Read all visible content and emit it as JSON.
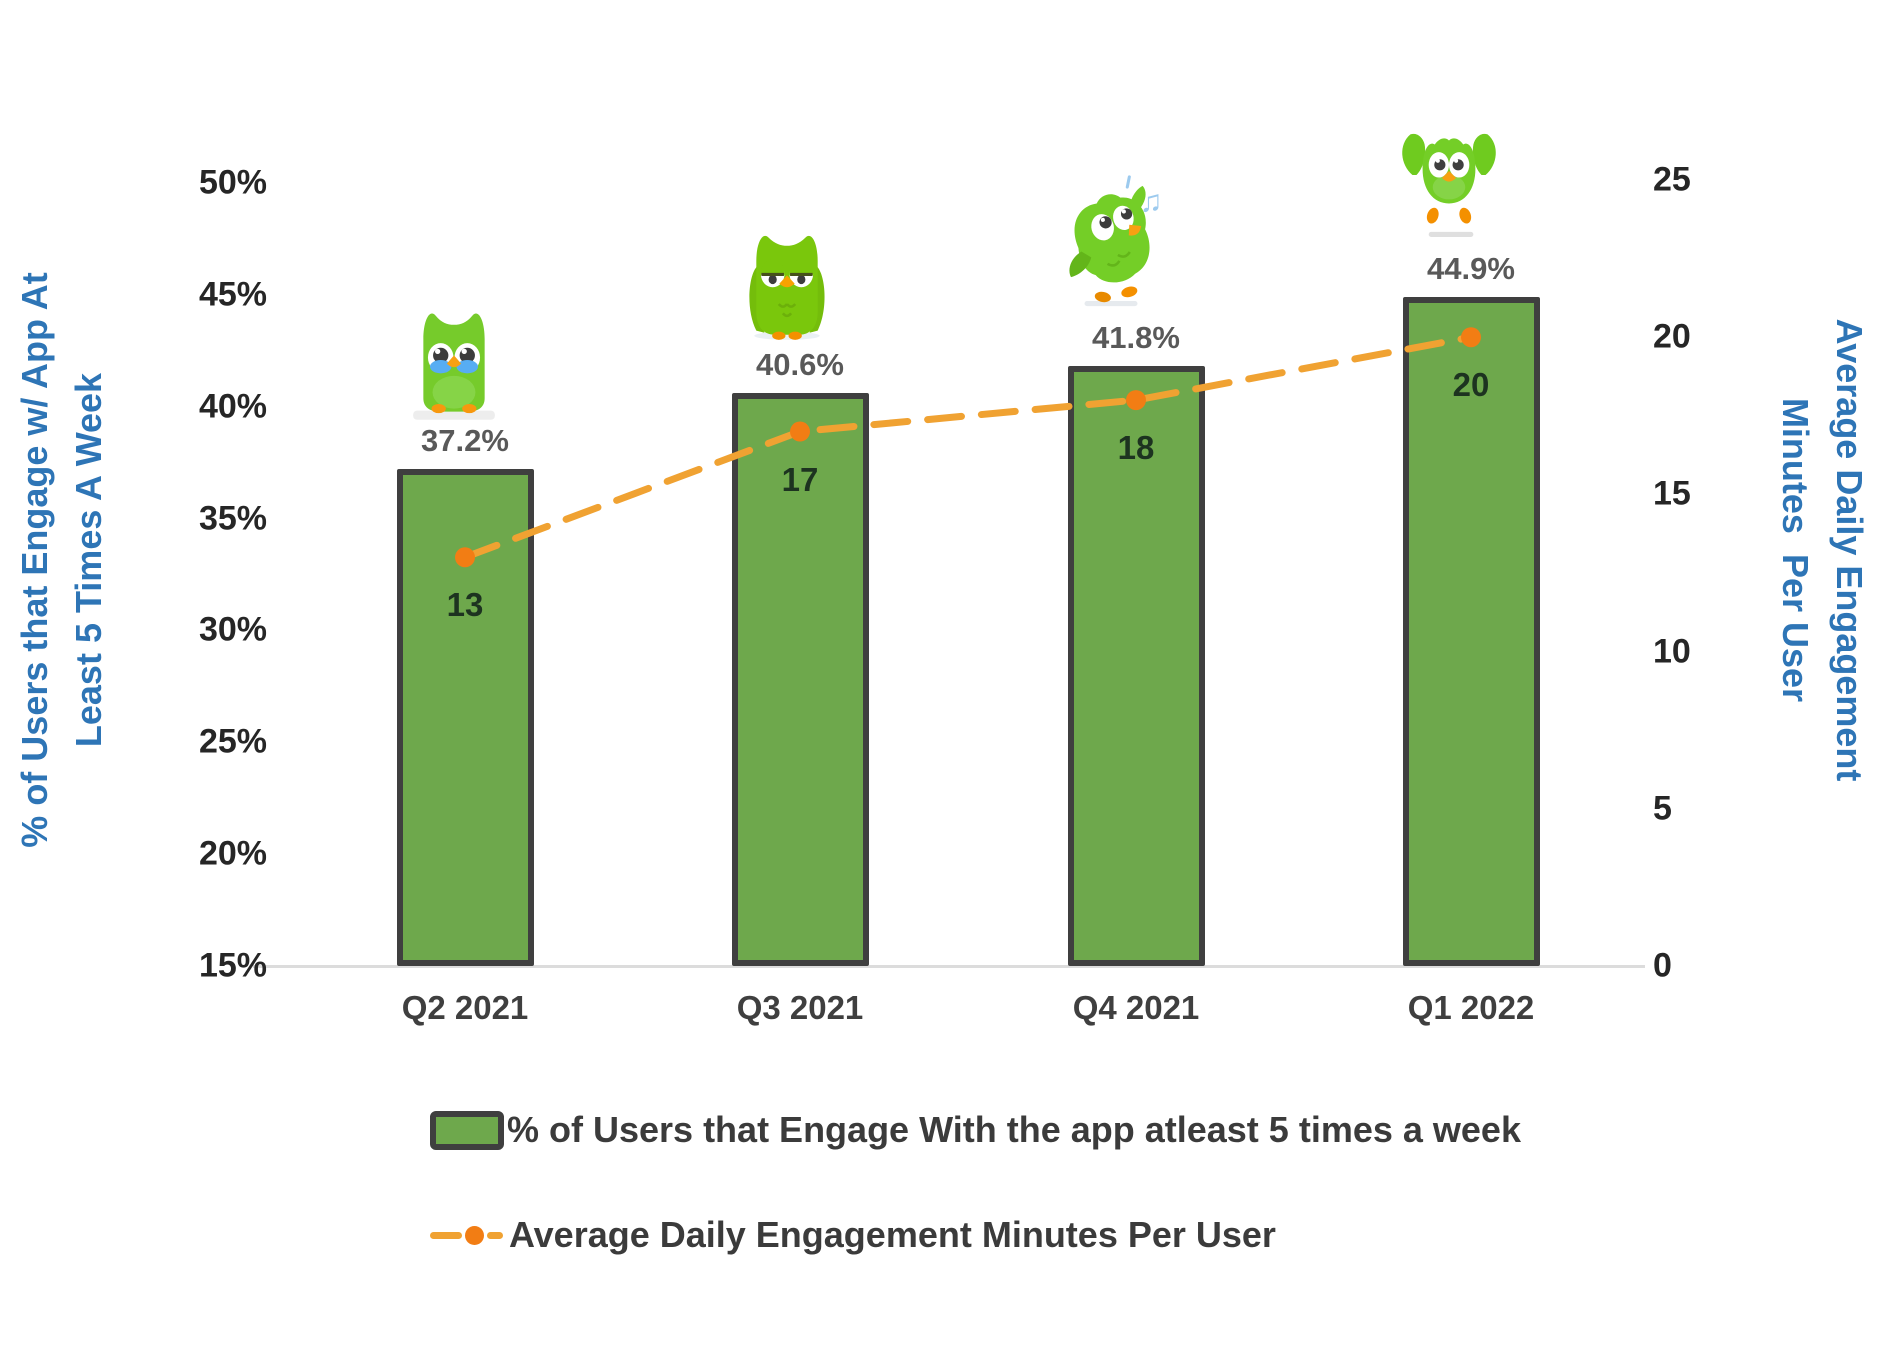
{
  "chart_data": {
    "type": "combo-bar-line",
    "categories": [
      "Q2 2021",
      "Q3 2021",
      "Q4 2021",
      "Q1 2022"
    ],
    "series": [
      {
        "name": "% of Users that Engage With the app atleast 5 times a week",
        "type": "bar",
        "axis": "left",
        "values": [
          37.2,
          40.6,
          41.8,
          44.9
        ],
        "labels": [
          "37.2%",
          "40.6%",
          "41.8%",
          "44.9%"
        ],
        "fill_color": "#6EA84C",
        "border_color": "#3F3F3F"
      },
      {
        "name": "Average Daily Engagement Minutes Per User",
        "type": "line",
        "axis": "right",
        "values": [
          13,
          17,
          18,
          20
        ],
        "labels": [
          "13",
          "17",
          "18",
          "20"
        ],
        "line_color": "#F0A232",
        "marker_color": "#F27D14",
        "line_style": "dashed"
      }
    ],
    "left_axis": {
      "title": "% of Users that Engage w/ App At\nLeast 5 Times A Week",
      "min": 15,
      "max": 50,
      "step": 5,
      "tick_labels": [
        "15%",
        "20%",
        "25%",
        "30%",
        "35%",
        "40%",
        "45%",
        "50%"
      ],
      "title_color": "#2E75B6"
    },
    "right_axis": {
      "title": "Average Daily Engagement\nMinutes  Per User",
      "min": 0,
      "max": 25,
      "step": 5,
      "tick_labels": [
        "0",
        "5",
        "10",
        "15",
        "20",
        "25"
      ],
      "title_color": "#2E75B6"
    },
    "legend_position": "bottom-left",
    "grid": false,
    "mascots": [
      {
        "icon": "duo-owl-crying-icon",
        "pose": "crying",
        "over_category": "Q2 2021"
      },
      {
        "icon": "duo-owl-bored-icon",
        "pose": "bored",
        "over_category": "Q3 2021"
      },
      {
        "icon": "duo-owl-dancing-icon",
        "pose": "dancing with music notes",
        "over_category": "Q4 2021"
      },
      {
        "icon": "duo-owl-flying-icon",
        "pose": "flying / jumping",
        "over_category": "Q1 2022"
      }
    ]
  }
}
